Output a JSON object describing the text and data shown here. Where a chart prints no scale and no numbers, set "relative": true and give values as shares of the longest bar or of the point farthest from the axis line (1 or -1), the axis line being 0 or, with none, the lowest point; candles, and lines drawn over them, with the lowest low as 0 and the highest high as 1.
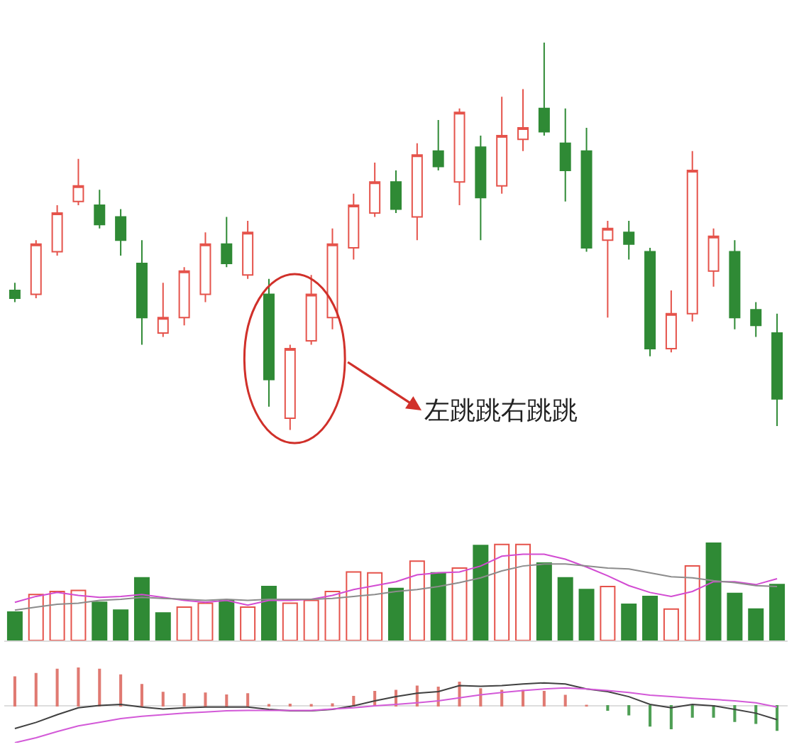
{
  "chart_data": [
    {
      "type": "candlestick",
      "relative": true,
      "categories": [
        null,
        null,
        null,
        null,
        null,
        null,
        null,
        null,
        null,
        null,
        null,
        null,
        null,
        null,
        null,
        null,
        null,
        null,
        null,
        null,
        null,
        null,
        null,
        null,
        null,
        null,
        null,
        null,
        null,
        null,
        null,
        null,
        null,
        null,
        null,
        null,
        null
      ],
      "ohlc": [
        [
          0.36,
          0.38,
          0.33,
          0.34
        ],
        [
          0.35,
          0.49,
          0.34,
          0.48
        ],
        [
          0.46,
          0.58,
          0.45,
          0.56
        ],
        [
          0.59,
          0.7,
          0.58,
          0.63
        ],
        [
          0.58,
          0.62,
          0.52,
          0.53
        ],
        [
          0.55,
          0.57,
          0.45,
          0.49
        ],
        [
          0.43,
          0.49,
          0.22,
          0.29
        ],
        [
          0.25,
          0.38,
          0.24,
          0.29
        ],
        [
          0.29,
          0.42,
          0.27,
          0.41
        ],
        [
          0.35,
          0.51,
          0.33,
          0.48
        ],
        [
          0.48,
          0.55,
          0.42,
          0.43
        ],
        [
          0.4,
          0.54,
          0.39,
          0.51
        ],
        [
          0.35,
          0.39,
          0.06,
          0.13
        ],
        [
          0.03,
          0.22,
          0,
          0.21
        ],
        [
          0.23,
          0.4,
          0.22,
          0.35
        ],
        [
          0.29,
          0.52,
          0.26,
          0.48
        ],
        [
          0.47,
          0.61,
          0.44,
          0.58
        ],
        [
          0.56,
          0.69,
          0.55,
          0.64
        ],
        [
          0.64,
          0.67,
          0.56,
          0.57
        ],
        [
          0.55,
          0.74,
          0.49,
          0.71
        ],
        [
          0.72,
          0.8,
          0.67,
          0.68
        ],
        [
          0.64,
          0.83,
          0.58,
          0.82
        ],
        [
          0.73,
          0.76,
          0.49,
          0.6
        ],
        [
          0.63,
          0.86,
          0.61,
          0.76
        ],
        [
          0.75,
          0.88,
          0.72,
          0.78
        ],
        [
          0.83,
          1,
          0.76,
          0.77
        ],
        [
          0.74,
          0.83,
          0.59,
          0.67
        ],
        [
          0.72,
          0.78,
          0.46,
          0.47
        ],
        [
          0.49,
          0.54,
          0.29,
          0.52
        ],
        [
          0.51,
          0.54,
          0.44,
          0.48
        ],
        [
          0.46,
          0.47,
          0.19,
          0.21
        ],
        [
          0.21,
          0.36,
          0.2,
          0.3
        ],
        [
          0.3,
          0.72,
          0.28,
          0.67
        ],
        [
          0.41,
          0.52,
          0.37,
          0.5
        ],
        [
          0.46,
          0.49,
          0.26,
          0.29
        ],
        [
          0.31,
          0.33,
          0.24,
          0.27
        ],
        [
          0.25,
          0.3,
          0.01,
          0.08
        ]
      ],
      "annotations": [
        "左跳跳右跳跳"
      ]
    },
    {
      "type": "bar",
      "relative": true,
      "categories": [
        null,
        null,
        null,
        null,
        null,
        null,
        null,
        null,
        null,
        null,
        null,
        null,
        null,
        null,
        null,
        null,
        null,
        null,
        null,
        null,
        null,
        null,
        null,
        null,
        null,
        null,
        null,
        null,
        null,
        null,
        null,
        null,
        null,
        null,
        null,
        null,
        null
      ],
      "series": [
        {
          "colors": [
            "#2f8a35",
            "#e5534b",
            "#e5534b",
            "#e5534b",
            "#2f8a35",
            "#2f8a35",
            "#2f8a35",
            "#2f8a35",
            "#e5534b",
            "#e5534b",
            "#2f8a35",
            "#e5534b",
            "#2f8a35",
            "#e5534b",
            "#e5534b",
            "#e5534b",
            "#e5534b",
            "#e5534b",
            "#2f8a35",
            "#e5534b",
            "#2f8a35",
            "#e5534b",
            "#2f8a35",
            "#e5534b",
            "#e5534b",
            "#2f8a35",
            "#2f8a35",
            "#2f8a35",
            "#e5534b",
            "#2f8a35",
            "#2f8a35",
            "#e5534b",
            "#e5534b",
            "#2f8a35",
            "#2f8a35",
            "#2f8a35",
            "#2f8a35"
          ],
          "values": [
            0.29,
            0.47,
            0.5,
            0.51,
            0.39,
            0.31,
            0.64,
            0.28,
            0.34,
            0.38,
            0.41,
            0.34,
            0.55,
            0.38,
            0.41,
            0.5,
            0.7,
            0.69,
            0.53,
            0.81,
            0.69,
            0.74,
            0.97,
            0.98,
            0.98,
            0.79,
            0.64,
            0.52,
            0.55,
            0.37,
            0.45,
            0.32,
            0.76,
            1,
            0.48,
            0.32,
            0.57
          ]
        },
        {
          "type": "line",
          "color": "#d24bd2",
          "values": [
            0.39,
            0.45,
            0.49,
            0.46,
            0.44,
            0.45,
            0.47,
            0.44,
            0.41,
            0.39,
            0.41,
            0.36,
            0.41,
            0.41,
            0.42,
            0.46,
            0.52,
            0.56,
            0.6,
            0.67,
            0.69,
            0.7,
            0.76,
            0.86,
            0.88,
            0.88,
            0.83,
            0.75,
            0.66,
            0.56,
            0.49,
            0.45,
            0.5,
            0.6,
            0.6,
            0.57,
            0.63
          ]
        },
        {
          "type": "line",
          "color": "#8c8c8c",
          "values": [
            0.31,
            0.34,
            0.37,
            0.38,
            0.41,
            0.42,
            0.44,
            0.43,
            0.42,
            0.41,
            0.42,
            0.41,
            0.42,
            0.42,
            0.42,
            0.43,
            0.45,
            0.47,
            0.5,
            0.52,
            0.55,
            0.59,
            0.64,
            0.71,
            0.76,
            0.78,
            0.78,
            0.76,
            0.74,
            0.73,
            0.69,
            0.65,
            0.64,
            0.61,
            0.59,
            0.56,
            0.55
          ]
        }
      ]
    },
    {
      "type": "bar",
      "relative": true,
      "categories": [
        null,
        null,
        null,
        null,
        null,
        null,
        null,
        null,
        null,
        null,
        null,
        null,
        null,
        null,
        null,
        null,
        null,
        null,
        null,
        null,
        null,
        null,
        null,
        null,
        null,
        null,
        null,
        null,
        null,
        null,
        null,
        null,
        null,
        null,
        null,
        null,
        null
      ],
      "series": [
        {
          "colors": [
            "#e07a72",
            "#e07a72",
            "#e07a72",
            "#e07a72",
            "#e07a72",
            "#e07a72",
            "#e07a72",
            "#e07a72",
            "#e07a72",
            "#e07a72",
            "#e07a72",
            "#e07a72",
            "#e07a72",
            "#e07a72",
            "#e07a72",
            "#e07a72",
            "#e07a72",
            "#e07a72",
            "#e07a72",
            "#e07a72",
            "#e07a72",
            "#e07a72",
            "#e07a72",
            "#e07a72",
            "#e07a72",
            "#e07a72",
            "#e07a72",
            "#e07a72",
            "#4f9f55",
            "#4f9f55",
            "#4f9f55",
            "#4f9f55",
            "#4f9f55",
            "#4f9f55",
            "#4f9f55",
            "#4f9f55",
            "#4f9f55"
          ],
          "values": [
            0.75,
            0.84,
            0.95,
            1,
            0.95,
            0.8,
            0.55,
            0.35,
            0.31,
            0.33,
            0.28,
            0.31,
            0.03,
            0.04,
            0.03,
            0.05,
            0.24,
            0.37,
            0.4,
            0.51,
            0.48,
            0.61,
            0.44,
            0.4,
            0.4,
            0.37,
            0.27,
            0.01,
            -0.11,
            -0.23,
            -0.52,
            -0.59,
            -0.29,
            -0.29,
            -0.4,
            -0.45,
            -0.63
          ]
        },
        {
          "type": "line",
          "color": "#404040",
          "values": [
            -0.59,
            -0.43,
            -0.23,
            -0.05,
            0.01,
            0.04,
            -0.03,
            -0.08,
            -0.05,
            -0.03,
            -0.03,
            -0.03,
            -0.09,
            -0.13,
            -0.13,
            -0.09,
            0,
            0.13,
            0.24,
            0.33,
            0.37,
            0.53,
            0.51,
            0.53,
            0.57,
            0.6,
            0.57,
            0.44,
            0.37,
            0.24,
            0.04,
            -0.05,
            0.04,
            0,
            -0.09,
            -0.19,
            -0.36
          ]
        },
        {
          "type": "line",
          "color": "#d35ad8",
          "values": [
            -0.96,
            -0.83,
            -0.67,
            -0.52,
            -0.43,
            -0.33,
            -0.27,
            -0.23,
            -0.19,
            -0.16,
            -0.13,
            -0.12,
            -0.12,
            -0.12,
            -0.12,
            -0.08,
            -0.05,
            0,
            0.04,
            0.08,
            0.13,
            0.21,
            0.29,
            0.35,
            0.4,
            0.44,
            0.47,
            0.44,
            0.4,
            0.35,
            0.28,
            0.24,
            0.2,
            0.17,
            0.13,
            0.08,
            -0.03
          ]
        }
      ]
    }
  ]
}
